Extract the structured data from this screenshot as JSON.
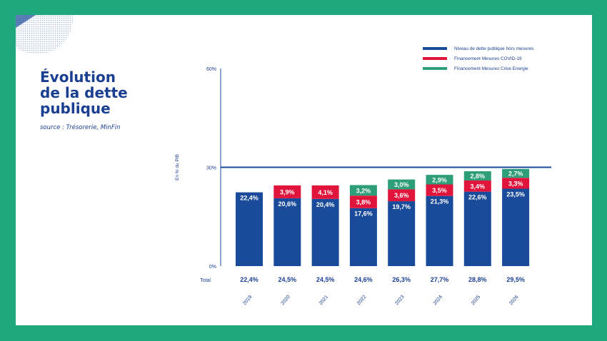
{
  "page": {
    "title_lines": [
      "Évolution",
      "de la dette",
      "publique"
    ],
    "source": "source : Trésorerie, MinFin"
  },
  "colors": {
    "frame": "#21a77d",
    "base": "#1a4b9a",
    "covid": "#e1143c",
    "energie": "#2e9e78",
    "axis": "#1a4b9a"
  },
  "chart_data": {
    "type": "bar",
    "stacked": true,
    "categories": [
      "2019",
      "2020",
      "2021",
      "2022",
      "2023",
      "2024",
      "2025",
      "2026"
    ],
    "series": [
      {
        "name": "Niveau de dette publique hors mesures",
        "values": [
          22.4,
          20.6,
          20.4,
          17.6,
          19.7,
          21.3,
          22.6,
          23.5
        ],
        "labels": [
          "22,4%",
          "20,6%",
          "20,4%",
          "17,6%",
          "19,7%",
          "21,3%",
          "22,6%",
          "23,5%"
        ]
      },
      {
        "name": "Financement Mesures COVID-19",
        "values": [
          0,
          3.9,
          4.1,
          3.8,
          3.6,
          3.5,
          3.4,
          3.3
        ],
        "labels": [
          "",
          "3,9%",
          "4,1%",
          "3,8%",
          "3,6%",
          "3,5%",
          "3,4%",
          "3,3%"
        ]
      },
      {
        "name": "Financement Mesures Crise Energie",
        "values": [
          0,
          0,
          0,
          3.2,
          3.0,
          2.9,
          2.8,
          2.7
        ],
        "labels": [
          "",
          "",
          "",
          "3,2%",
          "3,0%",
          "2,9%",
          "2,8%",
          "2,7%"
        ]
      }
    ],
    "totals_label": "Total",
    "totals": [
      "22,4%",
      "24,5%",
      "24,5%",
      "24,6%",
      "26,3%",
      "27,7%",
      "28,8%",
      "29,5%"
    ],
    "ylabel": "En % du PIB",
    "ylim": [
      0,
      60
    ],
    "yticks": [
      0,
      30,
      60
    ],
    "ytick_labels": [
      "0%",
      "30%",
      "60%"
    ],
    "reference_line": 30,
    "legend_position": "top-right"
  }
}
